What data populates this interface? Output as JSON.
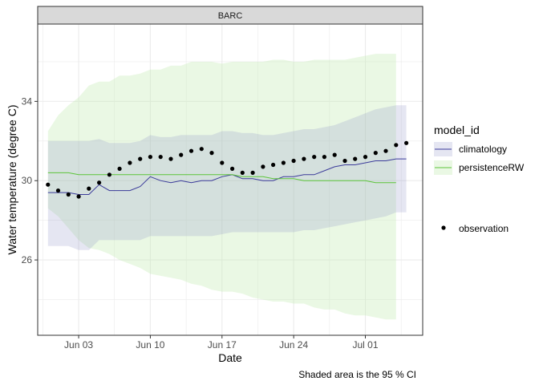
{
  "chart_data": {
    "type": "line",
    "facet": "BARC",
    "xlabel": "Date",
    "ylabel": "Water temperature (degree C)",
    "caption": "Shaded area is the 95 % CI",
    "x_ticks": [
      "Jun 03",
      "Jun 10",
      "Jun 17",
      "Jun 24",
      "Jul 01"
    ],
    "y_ticks": [
      26,
      30,
      34
    ],
    "xlim": [
      "2023-05-30",
      "2023-07-05"
    ],
    "ylim": [
      22.2,
      37.9
    ],
    "legend": {
      "title": "model_id",
      "position": "right",
      "entries": [
        "climatology",
        "persistenceRW"
      ],
      "point_entry": "observation"
    },
    "colors": {
      "climatology_line": "#3b3b9a",
      "climatology_fill": "#8a8fc4",
      "persistence_line": "#5cc43a",
      "persistence_fill": "#c2eab2",
      "observation": "#000000",
      "strip_fill": "#d9d9d9",
      "panel_border": "#333333",
      "grid": "#ebebeb"
    },
    "series": [
      {
        "name": "climatology",
        "x": [
          "2023-05-31",
          "2023-06-01",
          "2023-06-02",
          "2023-06-03",
          "2023-06-04",
          "2023-06-05",
          "2023-06-06",
          "2023-06-07",
          "2023-06-08",
          "2023-06-09",
          "2023-06-10",
          "2023-06-11",
          "2023-06-12",
          "2023-06-13",
          "2023-06-14",
          "2023-06-15",
          "2023-06-16",
          "2023-06-17",
          "2023-06-18",
          "2023-06-19",
          "2023-06-20",
          "2023-06-21",
          "2023-06-22",
          "2023-06-23",
          "2023-06-24",
          "2023-06-25",
          "2023-06-26",
          "2023-06-27",
          "2023-06-28",
          "2023-06-29",
          "2023-06-30",
          "2023-07-01",
          "2023-07-02",
          "2023-07-03",
          "2023-07-04",
          "2023-07-05"
        ],
        "y": [
          29.4,
          29.4,
          29.4,
          29.3,
          29.3,
          29.8,
          29.5,
          29.5,
          29.5,
          29.7,
          30.2,
          30.0,
          29.9,
          30.0,
          29.9,
          30.0,
          30.0,
          30.2,
          30.3,
          30.1,
          30.1,
          30.0,
          30.0,
          30.2,
          30.2,
          30.3,
          30.3,
          30.5,
          30.7,
          30.8,
          30.8,
          30.9,
          31.0,
          31.0,
          31.1,
          31.1
        ],
        "lower": [
          26.7,
          26.7,
          26.7,
          26.5,
          26.5,
          27.0,
          27.0,
          27.0,
          27.0,
          27.0,
          27.2,
          27.2,
          27.2,
          27.2,
          27.2,
          27.2,
          27.2,
          27.3,
          27.4,
          27.4,
          27.4,
          27.4,
          27.4,
          27.4,
          27.4,
          27.5,
          27.5,
          27.6,
          27.7,
          27.8,
          27.9,
          28.0,
          28.1,
          28.2,
          28.4,
          28.4
        ],
        "upper": [
          32.0,
          32.0,
          32.0,
          32.0,
          32.0,
          32.1,
          31.9,
          31.9,
          31.9,
          32.0,
          32.3,
          32.2,
          32.2,
          32.3,
          32.3,
          32.3,
          32.3,
          32.5,
          32.5,
          32.4,
          32.4,
          32.3,
          32.3,
          32.4,
          32.5,
          32.6,
          32.6,
          32.7,
          32.8,
          33.0,
          33.2,
          33.4,
          33.6,
          33.7,
          33.8,
          33.8
        ]
      },
      {
        "name": "persistenceRW",
        "x": [
          "2023-05-31",
          "2023-06-01",
          "2023-06-02",
          "2023-06-03",
          "2023-06-04",
          "2023-06-05",
          "2023-06-06",
          "2023-06-07",
          "2023-06-08",
          "2023-06-09",
          "2023-06-10",
          "2023-06-11",
          "2023-06-12",
          "2023-06-13",
          "2023-06-14",
          "2023-06-15",
          "2023-06-16",
          "2023-06-17",
          "2023-06-18",
          "2023-06-19",
          "2023-06-20",
          "2023-06-21",
          "2023-06-22",
          "2023-06-23",
          "2023-06-24",
          "2023-06-25",
          "2023-06-26",
          "2023-06-27",
          "2023-06-28",
          "2023-06-29",
          "2023-06-30",
          "2023-07-01",
          "2023-07-02",
          "2023-07-03",
          "2023-07-04"
        ],
        "y": [
          30.4,
          30.4,
          30.4,
          30.3,
          30.3,
          30.3,
          30.3,
          30.3,
          30.3,
          30.3,
          30.3,
          30.3,
          30.3,
          30.3,
          30.3,
          30.3,
          30.3,
          30.3,
          30.3,
          30.2,
          30.2,
          30.2,
          30.1,
          30.1,
          30.1,
          30.0,
          30.0,
          30.0,
          30.0,
          30.0,
          30.0,
          30.0,
          29.9,
          29.9,
          29.9
        ],
        "lower": [
          28.6,
          28.2,
          27.6,
          27.0,
          26.6,
          26.5,
          26.3,
          26.0,
          25.8,
          25.6,
          25.3,
          25.2,
          25.1,
          25.0,
          24.8,
          24.7,
          24.5,
          24.4,
          24.4,
          24.3,
          24.1,
          24.0,
          23.9,
          23.9,
          23.8,
          23.8,
          23.6,
          23.5,
          23.5,
          23.3,
          23.2,
          23.2,
          23.1,
          23.0,
          23.0
        ],
        "upper": [
          32.5,
          33.3,
          33.8,
          34.2,
          34.8,
          35.0,
          35.0,
          35.3,
          35.3,
          35.4,
          35.6,
          35.6,
          35.8,
          35.8,
          36.0,
          36.0,
          36.0,
          35.9,
          36.0,
          36.0,
          36.0,
          36.0,
          36.1,
          36.1,
          36.0,
          36.0,
          36.1,
          36.1,
          36.1,
          36.1,
          36.2,
          36.3,
          36.4,
          36.4,
          36.4
        ]
      }
    ],
    "observations": {
      "name": "observation",
      "x": [
        "2023-05-31",
        "2023-06-01",
        "2023-06-02",
        "2023-06-03",
        "2023-06-04",
        "2023-06-05",
        "2023-06-06",
        "2023-06-07",
        "2023-06-08",
        "2023-06-09",
        "2023-06-10",
        "2023-06-11",
        "2023-06-12",
        "2023-06-13",
        "2023-06-14",
        "2023-06-15",
        "2023-06-16",
        "2023-06-17",
        "2023-06-18",
        "2023-06-19",
        "2023-06-20",
        "2023-06-21",
        "2023-06-22",
        "2023-06-23",
        "2023-06-24",
        "2023-06-25",
        "2023-06-26",
        "2023-06-27",
        "2023-06-28",
        "2023-06-29",
        "2023-06-30",
        "2023-07-01",
        "2023-07-02",
        "2023-07-03",
        "2023-07-04",
        "2023-07-05"
      ],
      "y": [
        29.8,
        29.5,
        29.3,
        29.2,
        29.6,
        29.9,
        30.3,
        30.6,
        30.9,
        31.1,
        31.2,
        31.2,
        31.1,
        31.3,
        31.5,
        31.6,
        31.4,
        30.9,
        30.6,
        30.4,
        30.4,
        30.7,
        30.8,
        30.9,
        31.0,
        31.1,
        31.2,
        31.2,
        31.3,
        31.0,
        31.1,
        31.2,
        31.4,
        31.5,
        31.8,
        31.9
      ]
    }
  }
}
